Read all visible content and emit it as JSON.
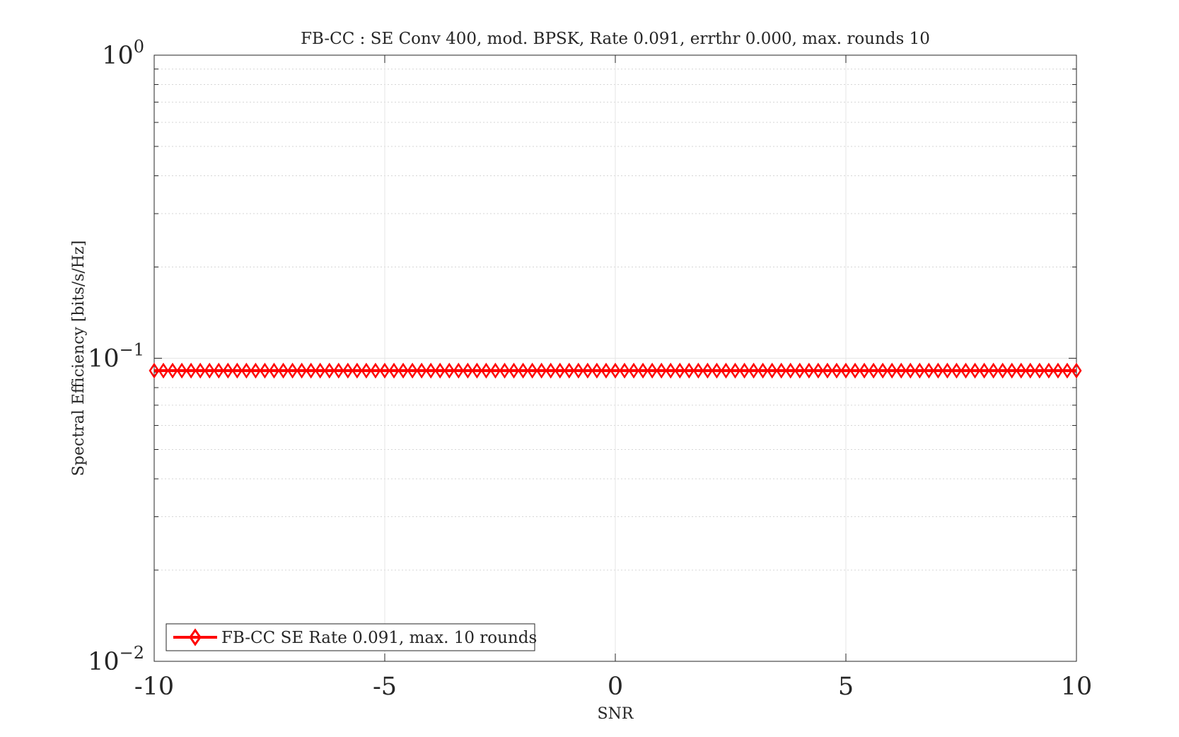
{
  "chart_data": {
    "type": "line",
    "title": "FB-CC : SE Conv 400, mod. BPSK, Rate 0.091, errthr 0.000, max. rounds 10",
    "xlabel": "SNR",
    "ylabel": "Spectral Efficiency [bits/s/Hz]",
    "xlim": [
      -10,
      10
    ],
    "ylim": [
      0.01,
      1
    ],
    "yscale": "log",
    "grid": true,
    "legend_position": "bottom-left",
    "xticks": [
      {
        "value": -10,
        "label": "-10"
      },
      {
        "value": -5,
        "label": "-5"
      },
      {
        "value": 0,
        "label": "0"
      },
      {
        "value": 5,
        "label": "5"
      },
      {
        "value": 10,
        "label": "10"
      }
    ],
    "yticks": [
      {
        "value": 1,
        "base": "10",
        "exp": "0"
      },
      {
        "value": 0.1,
        "base": "10",
        "exp": "−1"
      },
      {
        "value": 0.01,
        "base": "10",
        "exp": "−2"
      }
    ],
    "series": [
      {
        "name": "FB-CC SE Rate 0.091, max. 10 rounds",
        "color": "#ff0000",
        "marker": "diamond",
        "x_start": -10,
        "x_step": 0.2,
        "x_end": 10,
        "y": 0.091
      }
    ]
  }
}
